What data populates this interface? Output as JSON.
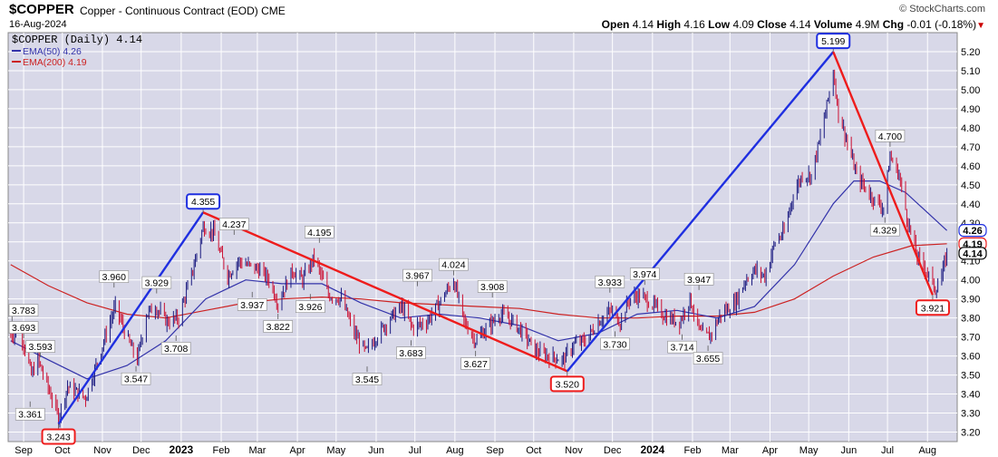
{
  "header": {
    "symbol": "$COPPER",
    "name": "Copper - Continuous Contract (EOD)",
    "exchange": "CME",
    "date": "16-Aug-2024",
    "source": "© StockCharts.com",
    "open_label": "Open",
    "open": "4.14",
    "high_label": "High",
    "high": "4.16",
    "low_label": "Low",
    "low": "4.09",
    "close_label": "Close",
    "close": "4.14",
    "volume_label": "Volume",
    "volume": "4.9M",
    "chg_label": "Chg",
    "chg": "-0.01 (-0.18%)"
  },
  "colors": {
    "plot_bg": "#d8d8e8",
    "grid": "#ffffff",
    "price_up": "#1a1a80",
    "price_down": "#cc1133",
    "ema50": "#3333aa",
    "ema200": "#cc2222",
    "uptrend": "#1f2fe0",
    "downtrend": "#ee1c1c"
  },
  "chart_data": {
    "type": "line",
    "title": "$COPPER (Daily) 4.14",
    "legend": [
      {
        "name": "EMA(50) 4.26",
        "color": "#3333aa"
      },
      {
        "name": "EMA(200) 4.19",
        "color": "#cc2222"
      }
    ],
    "x_labels": [
      "Sep",
      "Oct",
      "Nov",
      "Dec",
      "2023",
      "Feb",
      "Mar",
      "Apr",
      "May",
      "Jun",
      "Jul",
      "Aug",
      "Sep",
      "Oct",
      "Nov",
      "Dec",
      "2024",
      "Feb",
      "Mar",
      "Apr",
      "May",
      "Jun",
      "Jul",
      "Aug"
    ],
    "ylim": [
      3.15,
      5.3
    ],
    "y_ticks": [
      "3.20",
      "3.30",
      "3.40",
      "3.50",
      "3.60",
      "3.70",
      "3.80",
      "3.90",
      "4.00",
      "4.10",
      "4.20",
      "4.30",
      "4.40",
      "4.50",
      "4.60",
      "4.70",
      "4.80",
      "4.90",
      "5.00",
      "5.10",
      "5.20"
    ],
    "price_series": [
      {
        "x": "2022-08-22",
        "y": 3.7
      },
      {
        "x": "2022-08-29",
        "y": 3.75
      },
      {
        "x": "2022-09-07",
        "y": 3.5
      },
      {
        "x": "2022-09-12",
        "y": 3.58
      },
      {
        "x": "2022-09-19",
        "y": 3.45
      },
      {
        "x": "2022-09-28",
        "y": 3.28
      },
      {
        "x": "2022-10-05",
        "y": 3.44
      },
      {
        "x": "2022-10-19",
        "y": 3.38
      },
      {
        "x": "2022-11-04",
        "y": 3.72
      },
      {
        "x": "2022-11-11",
        "y": 3.86
      },
      {
        "x": "2022-11-21",
        "y": 3.68
      },
      {
        "x": "2022-11-28",
        "y": 3.58
      },
      {
        "x": "2022-12-05",
        "y": 3.82
      },
      {
        "x": "2022-12-12",
        "y": 3.86
      },
      {
        "x": "2022-12-21",
        "y": 3.78
      },
      {
        "x": "2022-12-30",
        "y": 3.8
      },
      {
        "x": "2023-01-10",
        "y": 4.05
      },
      {
        "x": "2023-01-18",
        "y": 4.28
      },
      {
        "x": "2023-01-26",
        "y": 4.25
      },
      {
        "x": "2023-02-06",
        "y": 4.02
      },
      {
        "x": "2023-02-14",
        "y": 4.1
      },
      {
        "x": "2023-02-21",
        "y": 4.08
      },
      {
        "x": "2023-03-03",
        "y": 4.05
      },
      {
        "x": "2023-03-10",
        "y": 4.0
      },
      {
        "x": "2023-03-17",
        "y": 3.88
      },
      {
        "x": "2023-03-28",
        "y": 4.05
      },
      {
        "x": "2023-04-05",
        "y": 4.0
      },
      {
        "x": "2023-04-14",
        "y": 4.12
      },
      {
        "x": "2023-04-25",
        "y": 3.92
      },
      {
        "x": "2023-05-05",
        "y": 3.9
      },
      {
        "x": "2023-05-15",
        "y": 3.72
      },
      {
        "x": "2023-05-24",
        "y": 3.62
      },
      {
        "x": "2023-06-01",
        "y": 3.7
      },
      {
        "x": "2023-06-12",
        "y": 3.8
      },
      {
        "x": "2023-06-21",
        "y": 3.86
      },
      {
        "x": "2023-06-29",
        "y": 3.75
      },
      {
        "x": "2023-07-10",
        "y": 3.78
      },
      {
        "x": "2023-07-20",
        "y": 3.88
      },
      {
        "x": "2023-07-31",
        "y": 4.0
      },
      {
        "x": "2023-08-08",
        "y": 3.78
      },
      {
        "x": "2023-08-17",
        "y": 3.68
      },
      {
        "x": "2023-08-25",
        "y": 3.74
      },
      {
        "x": "2023-09-05",
        "y": 3.82
      },
      {
        "x": "2023-09-15",
        "y": 3.78
      },
      {
        "x": "2023-09-25",
        "y": 3.7
      },
      {
        "x": "2023-10-03",
        "y": 3.62
      },
      {
        "x": "2023-10-12",
        "y": 3.6
      },
      {
        "x": "2023-10-24",
        "y": 3.58
      },
      {
        "x": "2023-11-01",
        "y": 3.66
      },
      {
        "x": "2023-11-10",
        "y": 3.68
      },
      {
        "x": "2023-11-20",
        "y": 3.78
      },
      {
        "x": "2023-11-30",
        "y": 3.84
      },
      {
        "x": "2023-12-07",
        "y": 3.78
      },
      {
        "x": "2023-12-14",
        "y": 3.9
      },
      {
        "x": "2023-12-22",
        "y": 3.92
      },
      {
        "x": "2024-01-03",
        "y": 3.86
      },
      {
        "x": "2024-01-12",
        "y": 3.8
      },
      {
        "x": "2024-01-22",
        "y": 3.78
      },
      {
        "x": "2024-01-30",
        "y": 3.9
      },
      {
        "x": "2024-02-07",
        "y": 3.72
      },
      {
        "x": "2024-02-14",
        "y": 3.7
      },
      {
        "x": "2024-02-23",
        "y": 3.82
      },
      {
        "x": "2024-03-05",
        "y": 3.88
      },
      {
        "x": "2024-03-13",
        "y": 4.0
      },
      {
        "x": "2024-03-20",
        "y": 4.05
      },
      {
        "x": "2024-03-28",
        "y": 4.02
      },
      {
        "x": "2024-04-05",
        "y": 4.2
      },
      {
        "x": "2024-04-12",
        "y": 4.25
      },
      {
        "x": "2024-04-19",
        "y": 4.45
      },
      {
        "x": "2024-04-26",
        "y": 4.55
      },
      {
        "x": "2024-05-03",
        "y": 4.55
      },
      {
        "x": "2024-05-10",
        "y": 4.75
      },
      {
        "x": "2024-05-16",
        "y": 4.95
      },
      {
        "x": "2024-05-20",
        "y": 5.1
      },
      {
        "x": "2024-05-24",
        "y": 4.88
      },
      {
        "x": "2024-05-31",
        "y": 4.72
      },
      {
        "x": "2024-06-07",
        "y": 4.55
      },
      {
        "x": "2024-06-14",
        "y": 4.48
      },
      {
        "x": "2024-06-21",
        "y": 4.42
      },
      {
        "x": "2024-06-28",
        "y": 4.38
      },
      {
        "x": "2024-07-03",
        "y": 4.65
      },
      {
        "x": "2024-07-10",
        "y": 4.55
      },
      {
        "x": "2024-07-17",
        "y": 4.3
      },
      {
        "x": "2024-07-24",
        "y": 4.12
      },
      {
        "x": "2024-07-31",
        "y": 4.05
      },
      {
        "x": "2024-08-07",
        "y": 3.95
      },
      {
        "x": "2024-08-12",
        "y": 4.02
      },
      {
        "x": "2024-08-16",
        "y": 4.14
      }
    ],
    "ema50": [
      {
        "x": "2022-08-22",
        "y": 3.68
      },
      {
        "x": "2022-09-20",
        "y": 3.58
      },
      {
        "x": "2022-10-20",
        "y": 3.48
      },
      {
        "x": "2022-11-20",
        "y": 3.55
      },
      {
        "x": "2022-12-20",
        "y": 3.68
      },
      {
        "x": "2023-01-20",
        "y": 3.9
      },
      {
        "x": "2023-02-20",
        "y": 4.0
      },
      {
        "x": "2023-03-20",
        "y": 3.98
      },
      {
        "x": "2023-04-20",
        "y": 3.98
      },
      {
        "x": "2023-05-20",
        "y": 3.88
      },
      {
        "x": "2023-06-20",
        "y": 3.8
      },
      {
        "x": "2023-07-20",
        "y": 3.82
      },
      {
        "x": "2023-08-20",
        "y": 3.8
      },
      {
        "x": "2023-09-20",
        "y": 3.76
      },
      {
        "x": "2023-10-20",
        "y": 3.68
      },
      {
        "x": "2023-11-20",
        "y": 3.72
      },
      {
        "x": "2023-12-20",
        "y": 3.82
      },
      {
        "x": "2024-01-20",
        "y": 3.84
      },
      {
        "x": "2024-02-20",
        "y": 3.8
      },
      {
        "x": "2024-03-20",
        "y": 3.86
      },
      {
        "x": "2024-04-20",
        "y": 4.08
      },
      {
        "x": "2024-05-20",
        "y": 4.4
      },
      {
        "x": "2024-06-05",
        "y": 4.52
      },
      {
        "x": "2024-06-25",
        "y": 4.52
      },
      {
        "x": "2024-07-15",
        "y": 4.46
      },
      {
        "x": "2024-08-16",
        "y": 4.26
      }
    ],
    "ema200": [
      {
        "x": "2022-08-22",
        "y": 4.08
      },
      {
        "x": "2022-09-20",
        "y": 3.97
      },
      {
        "x": "2022-10-20",
        "y": 3.88
      },
      {
        "x": "2022-11-20",
        "y": 3.82
      },
      {
        "x": "2022-12-20",
        "y": 3.8
      },
      {
        "x": "2023-01-20",
        "y": 3.84
      },
      {
        "x": "2023-02-20",
        "y": 3.88
      },
      {
        "x": "2023-03-20",
        "y": 3.9
      },
      {
        "x": "2023-04-20",
        "y": 3.91
      },
      {
        "x": "2023-05-20",
        "y": 3.9
      },
      {
        "x": "2023-06-20",
        "y": 3.88
      },
      {
        "x": "2023-07-20",
        "y": 3.87
      },
      {
        "x": "2023-08-20",
        "y": 3.86
      },
      {
        "x": "2023-09-20",
        "y": 3.85
      },
      {
        "x": "2023-10-20",
        "y": 3.82
      },
      {
        "x": "2023-11-20",
        "y": 3.8
      },
      {
        "x": "2023-12-20",
        "y": 3.8
      },
      {
        "x": "2024-01-20",
        "y": 3.81
      },
      {
        "x": "2024-02-20",
        "y": 3.81
      },
      {
        "x": "2024-03-20",
        "y": 3.83
      },
      {
        "x": "2024-04-20",
        "y": 3.9
      },
      {
        "x": "2024-05-20",
        "y": 4.02
      },
      {
        "x": "2024-06-20",
        "y": 4.12
      },
      {
        "x": "2024-07-20",
        "y": 4.18
      },
      {
        "x": "2024-08-16",
        "y": 4.19
      }
    ],
    "trendlines": [
      {
        "from": {
          "x": "2022-09-28",
          "y": 3.243
        },
        "to": {
          "x": "2023-01-18",
          "y": 4.355
        },
        "color": "#1f2fe0"
      },
      {
        "from": {
          "x": "2023-01-18",
          "y": 4.355
        },
        "to": {
          "x": "2023-10-27",
          "y": 3.52
        },
        "color": "#ee1c1c"
      },
      {
        "from": {
          "x": "2023-10-27",
          "y": 3.52
        },
        "to": {
          "x": "2024-05-20",
          "y": 5.199
        },
        "color": "#1f2fe0"
      },
      {
        "from": {
          "x": "2024-05-20",
          "y": 5.199
        },
        "to": {
          "x": "2024-08-05",
          "y": 3.921
        },
        "color": "#ee1c1c"
      }
    ],
    "annotations": [
      {
        "x": "2022-08-23",
        "y": 3.783,
        "label": "3.783",
        "pos": "above",
        "box": ""
      },
      {
        "x": "2022-09-01",
        "y": 3.693,
        "label": "3.693",
        "pos": "above",
        "box": ""
      },
      {
        "x": "2022-09-14",
        "y": 3.593,
        "label": "3.593",
        "pos": "above",
        "box": ""
      },
      {
        "x": "2022-09-06",
        "y": 3.361,
        "label": "3.361",
        "pos": "below",
        "box": ""
      },
      {
        "x": "2022-09-28",
        "y": 3.243,
        "label": "3.243",
        "pos": "below",
        "box": "#ee1c1c"
      },
      {
        "x": "2022-11-10",
        "y": 3.96,
        "label": "3.960",
        "pos": "above",
        "box": ""
      },
      {
        "x": "2022-11-27",
        "y": 3.547,
        "label": "3.547",
        "pos": "below",
        "box": ""
      },
      {
        "x": "2022-12-13",
        "y": 3.929,
        "label": "3.929",
        "pos": "above",
        "box": ""
      },
      {
        "x": "2022-12-28",
        "y": 3.708,
        "label": "3.708",
        "pos": "below",
        "box": ""
      },
      {
        "x": "2023-01-18",
        "y": 4.355,
        "label": "4.355",
        "pos": "above",
        "box": "#1f2fe0"
      },
      {
        "x": "2023-02-11",
        "y": 4.237,
        "label": "4.237",
        "pos": "above",
        "box": ""
      },
      {
        "x": "2023-02-25",
        "y": 3.937,
        "label": "3.937",
        "pos": "below",
        "box": ""
      },
      {
        "x": "2023-03-17",
        "y": 3.822,
        "label": "3.822",
        "pos": "below",
        "box": ""
      },
      {
        "x": "2023-04-11",
        "y": 3.926,
        "label": "3.926",
        "pos": "below",
        "box": ""
      },
      {
        "x": "2023-04-18",
        "y": 4.195,
        "label": "4.195",
        "pos": "above",
        "box": ""
      },
      {
        "x": "2023-05-25",
        "y": 3.545,
        "label": "3.545",
        "pos": "below",
        "box": ""
      },
      {
        "x": "2023-07-03",
        "y": 3.967,
        "label": "3.967",
        "pos": "above",
        "box": ""
      },
      {
        "x": "2023-06-28",
        "y": 3.683,
        "label": "3.683",
        "pos": "below",
        "box": ""
      },
      {
        "x": "2023-07-31",
        "y": 4.024,
        "label": "4.024",
        "pos": "above",
        "box": ""
      },
      {
        "x": "2023-08-17",
        "y": 3.627,
        "label": "3.627",
        "pos": "below",
        "box": ""
      },
      {
        "x": "2023-08-30",
        "y": 3.908,
        "label": "3.908",
        "pos": "above",
        "box": ""
      },
      {
        "x": "2023-10-27",
        "y": 3.52,
        "label": "3.520",
        "pos": "below",
        "box": "#ee1c1c"
      },
      {
        "x": "2023-11-29",
        "y": 3.933,
        "label": "3.933",
        "pos": "above",
        "box": ""
      },
      {
        "x": "2023-12-03",
        "y": 3.73,
        "label": "3.730",
        "pos": "below",
        "box": ""
      },
      {
        "x": "2023-12-26",
        "y": 3.974,
        "label": "3.974",
        "pos": "above",
        "box": ""
      },
      {
        "x": "2024-01-24",
        "y": 3.714,
        "label": "3.714",
        "pos": "below",
        "box": ""
      },
      {
        "x": "2024-02-06",
        "y": 3.947,
        "label": "3.947",
        "pos": "above",
        "box": ""
      },
      {
        "x": "2024-02-13",
        "y": 3.655,
        "label": "3.655",
        "pos": "below",
        "box": ""
      },
      {
        "x": "2024-05-20",
        "y": 5.199,
        "label": "5.199",
        "pos": "above",
        "box": "#1f2fe0"
      },
      {
        "x": "2024-07-03",
        "y": 4.7,
        "label": "4.700",
        "pos": "above",
        "box": ""
      },
      {
        "x": "2024-06-29",
        "y": 4.329,
        "label": "4.329",
        "pos": "below",
        "box": ""
      },
      {
        "x": "2024-08-05",
        "y": 3.921,
        "label": "3.921",
        "pos": "below",
        "box": "#ee1c1c"
      }
    ],
    "right_markers": [
      {
        "y": 4.26,
        "label": "4.26",
        "color": "#1f2fe0"
      },
      {
        "y": 4.19,
        "label": "4.19",
        "color": "#ee1c1c"
      },
      {
        "y": 4.14,
        "label": "4.14",
        "color": "#000000"
      }
    ],
    "grid": true
  }
}
